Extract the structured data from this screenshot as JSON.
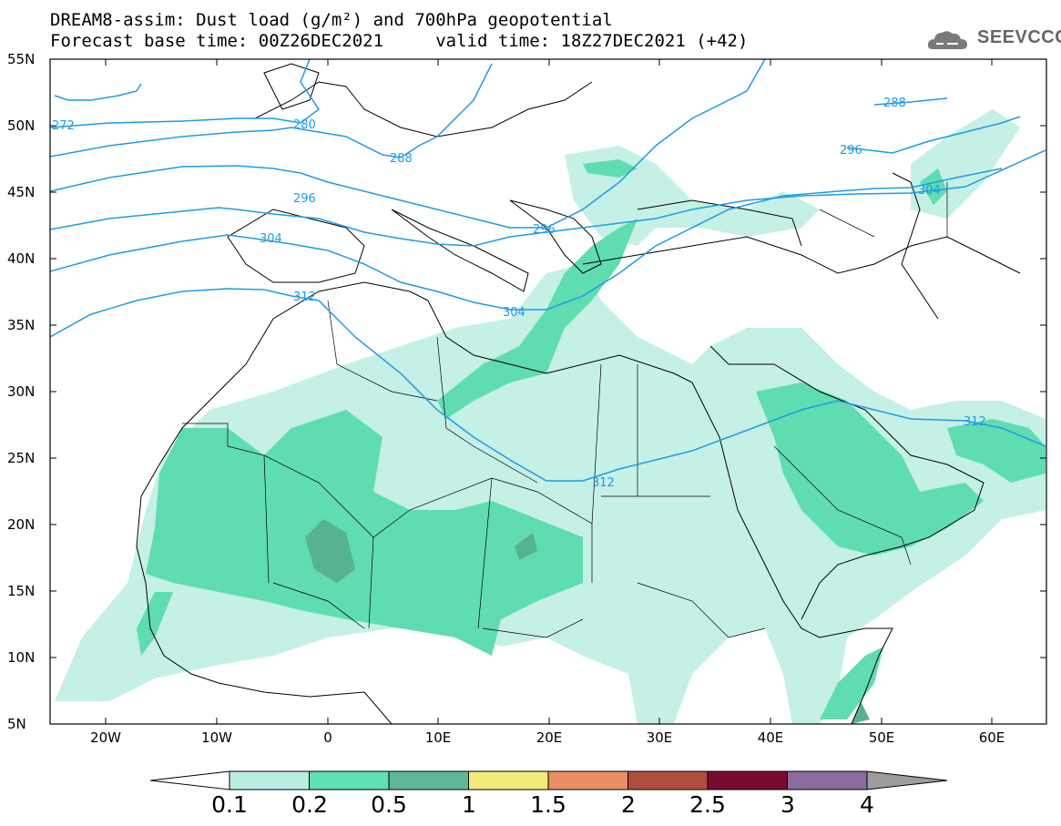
{
  "title": {
    "line1": "DREAM8-assim: Dust load (g/m²) and 700hPa geopotential",
    "line2": "Forecast base time: 00Z26DEC2021     valid time: 18Z27DEC2021 (+42)"
  },
  "logo": {
    "text": "SEEVCCC",
    "icon": "cloud-icon"
  },
  "axes": {
    "lat_labels": [
      "55N",
      "50N",
      "45N",
      "40N",
      "35N",
      "30N",
      "25N",
      "20N",
      "15N",
      "10N",
      "5N"
    ],
    "lon_labels": [
      "20W",
      "10W",
      "0",
      "10E",
      "20E",
      "30E",
      "40E",
      "50E",
      "60E"
    ]
  },
  "contour_labels": [
    {
      "text": "272"
    },
    {
      "text": "280"
    },
    {
      "text": "288"
    },
    {
      "text": "296"
    },
    {
      "text": "304"
    },
    {
      "text": "312"
    },
    {
      "text": "296"
    },
    {
      "text": "304"
    },
    {
      "text": "312"
    },
    {
      "text": "288"
    },
    {
      "text": "296"
    },
    {
      "text": "304"
    },
    {
      "text": "312"
    }
  ],
  "colorbar": {
    "labels": [
      "0.1",
      "0.2",
      "0.5",
      "1",
      "1.5",
      "2",
      "2.5",
      "3",
      "4"
    ],
    "colors": [
      "#b9ede2",
      "#5fe0b5",
      "#5cb896",
      "#f3ea7c",
      "#ea8f63",
      "#ae4d3f",
      "#7b0b2e",
      "#8c6b9e"
    ],
    "under_color": "#ffffff",
    "over_color": "#9c9c9c"
  },
  "dust_colors": {
    "light": "#c4f0e6",
    "medium": "#5fdcb0",
    "dark": "#56b28f"
  },
  "contour_color": "#1e9be6"
}
